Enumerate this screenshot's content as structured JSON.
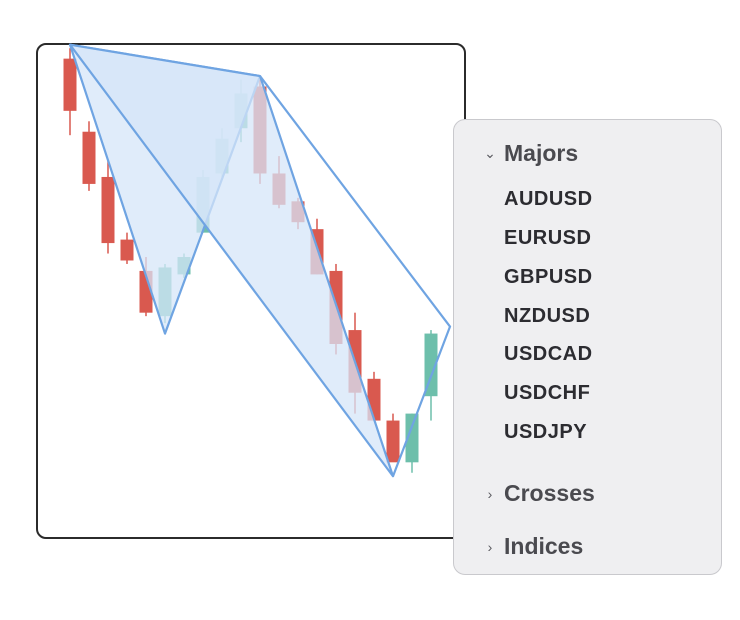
{
  "panel": {
    "groups": [
      {
        "label": "Majors",
        "expanded": true,
        "items": [
          "AUDUSD",
          "EURUSD",
          "GBPUSD",
          "NZDUSD",
          "USDCAD",
          "USDCHF",
          "USDJPY"
        ]
      },
      {
        "label": "Crosses",
        "expanded": false
      },
      {
        "label": "Indices",
        "expanded": false
      }
    ]
  },
  "icons": {
    "expanded": "chevron-down-icon",
    "collapsed": "chevron-right-icon"
  },
  "colors": {
    "bull": "#6dbfab",
    "bear": "#d9594f",
    "pattern_fill": "#d6e6f8",
    "pattern_stroke": "#6fa4e2",
    "frame": "#2b2b2b"
  },
  "chart_data": {
    "type": "candlestick",
    "candles": [
      {
        "o": 132,
        "h": 135,
        "l": 110,
        "c": 117
      },
      {
        "o": 111,
        "h": 114,
        "l": 94,
        "c": 96
      },
      {
        "o": 98,
        "h": 103,
        "l": 76,
        "c": 79
      },
      {
        "o": 80,
        "h": 82,
        "l": 73,
        "c": 74
      },
      {
        "o": 71,
        "h": 75,
        "l": 58,
        "c": 59
      },
      {
        "o": 58,
        "h": 73,
        "l": 56,
        "c": 72
      },
      {
        "o": 70,
        "h": 76,
        "l": 69,
        "c": 75
      },
      {
        "o": 82,
        "h": 100,
        "l": 82,
        "c": 98
      },
      {
        "o": 99,
        "h": 112,
        "l": 98,
        "c": 109
      },
      {
        "o": 112,
        "h": 126,
        "l": 108,
        "c": 122
      },
      {
        "o": 124,
        "h": 126,
        "l": 96,
        "c": 99
      },
      {
        "o": 99,
        "h": 104,
        "l": 89,
        "c": 90
      },
      {
        "o": 91,
        "h": 92,
        "l": 83,
        "c": 85
      },
      {
        "o": 83,
        "h": 86,
        "l": 70,
        "c": 70
      },
      {
        "o": 71,
        "h": 73,
        "l": 47,
        "c": 50
      },
      {
        "o": 54,
        "h": 59,
        "l": 30,
        "c": 36
      },
      {
        "o": 40,
        "h": 42,
        "l": 28,
        "c": 28
      },
      {
        "o": 28,
        "h": 30,
        "l": 17,
        "c": 16
      },
      {
        "o": 16,
        "h": 30,
        "l": 13,
        "c": 30
      },
      {
        "o": 35,
        "h": 54,
        "l": 28,
        "c": 53
      }
    ],
    "pattern": {
      "points": [
        {
          "i": 0,
          "v": 136
        },
        {
          "i": 10,
          "v": 127
        },
        {
          "i": 5,
          "v": 53
        },
        {
          "i": 0,
          "v": 136
        },
        {
          "i": 10,
          "v": 127
        },
        {
          "i": 20,
          "v": 55
        },
        {
          "i": 17,
          "v": 12
        }
      ]
    }
  }
}
